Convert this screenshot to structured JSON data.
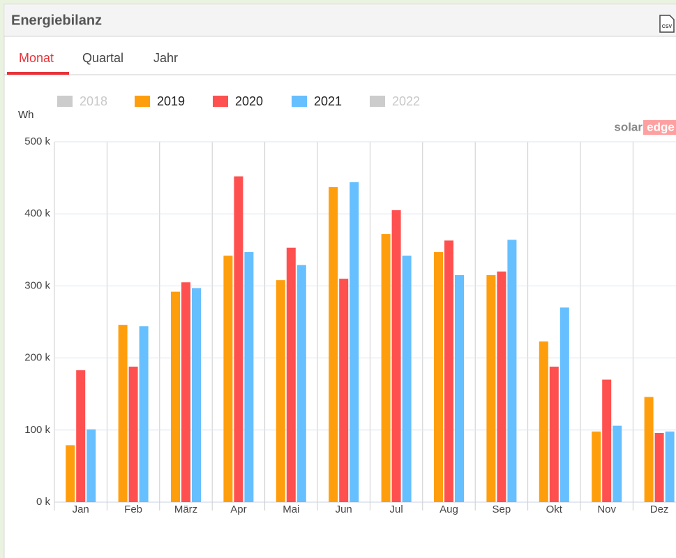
{
  "panel": {
    "title": "Energiebilanz",
    "tabs": [
      "Monat",
      "Quartal",
      "Jahr"
    ],
    "active_tab": 0,
    "export": "CSV",
    "logo": [
      "solar",
      "edge"
    ]
  },
  "chart_data": {
    "type": "bar",
    "ylabel": "Wh",
    "categories": [
      "Jan",
      "Feb",
      "März",
      "Apr",
      "Mai",
      "Jun",
      "Jul",
      "Aug",
      "Sep",
      "Okt",
      "Nov",
      "Dez"
    ],
    "series": [
      {
        "name": "2018",
        "color": "#cccccc",
        "visible": false,
        "values": [
          null,
          null,
          null,
          null,
          null,
          null,
          null,
          null,
          null,
          null,
          null,
          null
        ]
      },
      {
        "name": "2019",
        "color": "#ff9e0d",
        "visible": true,
        "values": [
          79000,
          246000,
          292000,
          342000,
          308000,
          437000,
          372000,
          347000,
          315000,
          223000,
          98000,
          146000
        ]
      },
      {
        "name": "2020",
        "color": "#ff5050",
        "visible": true,
        "values": [
          183000,
          188000,
          305000,
          452000,
          353000,
          310000,
          405000,
          363000,
          320000,
          188000,
          170000,
          96000
        ]
      },
      {
        "name": "2021",
        "color": "#66bfff",
        "visible": true,
        "values": [
          101000,
          244000,
          297000,
          347000,
          329000,
          444000,
          342000,
          315000,
          364000,
          270000,
          106000,
          98000
        ]
      },
      {
        "name": "2022",
        "color": "#cccccc",
        "visible": false,
        "values": [
          null,
          null,
          null,
          null,
          null,
          null,
          null,
          null,
          null,
          null,
          null,
          null
        ]
      }
    ],
    "ylim": [
      0,
      500000
    ],
    "yticks": [
      {
        "value": 0,
        "label": "0 k"
      },
      {
        "value": 100000,
        "label": "100 k"
      },
      {
        "value": 200000,
        "label": "200 k"
      },
      {
        "value": 300000,
        "label": "300 k"
      },
      {
        "value": 400000,
        "label": "400 k"
      },
      {
        "value": 500000,
        "label": "500 k"
      }
    ],
    "grid": true
  }
}
